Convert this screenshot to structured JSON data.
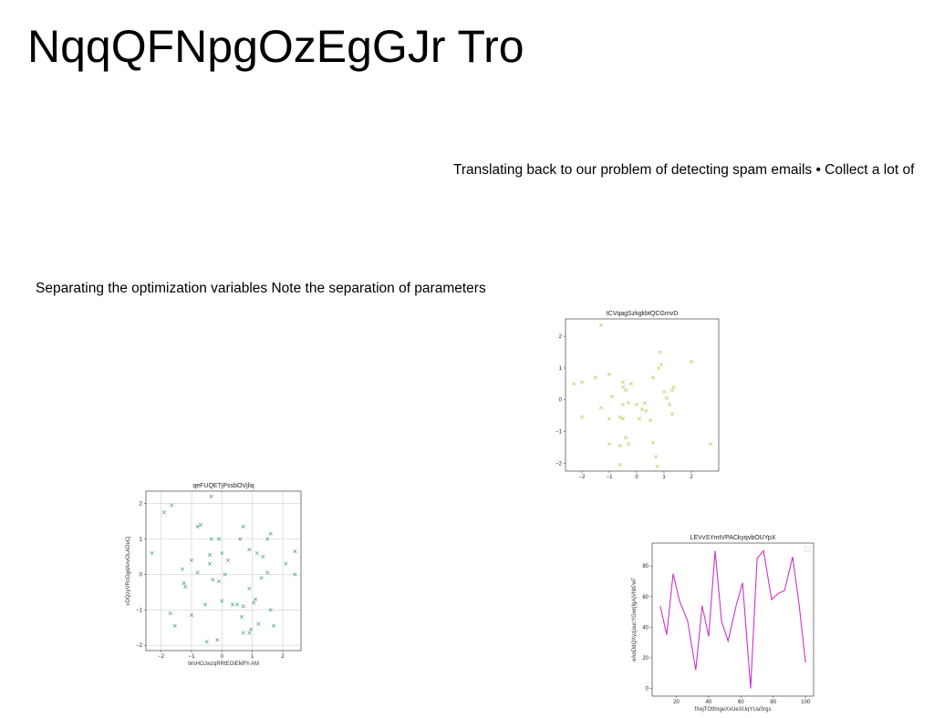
{
  "slide": {
    "title": "NqqQFNpgOzEgGJr Tro",
    "paragraph_1": "Translating back to our problem of detecting spam emails • Collect a lot of",
    "paragraph_2": "Separating the optimization variables Note the separation of parameters"
  },
  "chart_data": [
    {
      "type": "scatter",
      "title": "tCVqagSzkgkbtQCGmvD",
      "xlabel": "",
      "ylabel": "",
      "xlim": [
        -2.6,
        3.0
      ],
      "ylim": [
        -2.25,
        2.55
      ],
      "xticks": [
        -2,
        -1,
        0,
        1,
        2
      ],
      "yticks": [
        -2,
        -1,
        0,
        1,
        2
      ],
      "grid": false,
      "marker": "x",
      "color": "#c8cc6a",
      "points": [
        [
          -1.3,
          2.35
        ],
        [
          -2.3,
          0.5
        ],
        [
          -2.0,
          0.55
        ],
        [
          -1.5,
          0.7
        ],
        [
          -1.0,
          0.8
        ],
        [
          -0.9,
          0.1
        ],
        [
          -1.3,
          -0.25
        ],
        [
          -1.0,
          -0.6
        ],
        [
          -0.5,
          0.55
        ],
        [
          -0.5,
          0.4
        ],
        [
          -0.4,
          0.3
        ],
        [
          -0.3,
          -0.1
        ],
        [
          -0.5,
          -0.15
        ],
        [
          -0.2,
          0.5
        ],
        [
          -0.6,
          -0.55
        ],
        [
          -0.5,
          -0.6
        ],
        [
          0.0,
          -0.15
        ],
        [
          0.1,
          -0.6
        ],
        [
          0.2,
          -0.3
        ],
        [
          0.3,
          -0.1
        ],
        [
          0.35,
          -0.35
        ],
        [
          0.5,
          -0.65
        ],
        [
          0.6,
          0.7
        ],
        [
          0.8,
          1.0
        ],
        [
          0.9,
          1.1
        ],
        [
          0.85,
          1.5
        ],
        [
          1.0,
          0.25
        ],
        [
          1.1,
          0.05
        ],
        [
          1.2,
          -0.15
        ],
        [
          1.3,
          0.3
        ],
        [
          1.35,
          0.4
        ],
        [
          1.3,
          -0.45
        ],
        [
          2.0,
          1.2
        ],
        [
          2.7,
          -1.4
        ],
        [
          -2.0,
          -0.55
        ],
        [
          -1.0,
          -1.4
        ],
        [
          -0.6,
          -1.45
        ],
        [
          -0.3,
          -1.4
        ],
        [
          -0.6,
          -2.05
        ],
        [
          0.6,
          -1.35
        ],
        [
          0.7,
          -1.8
        ],
        [
          0.75,
          -2.1
        ],
        [
          -0.4,
          -1.2
        ]
      ]
    },
    {
      "type": "scatter",
      "title": "qeFUQETjPssbOVjliq",
      "xlabel": "WsHOJwzqRRtEOiEMFh AM",
      "ylabel": "vDQzyVRcGgdAxvOLADeCj",
      "xlim": [
        -2.5,
        2.6
      ],
      "ylim": [
        -2.15,
        2.35
      ],
      "xticks": [
        -2,
        -1,
        0,
        1,
        2
      ],
      "yticks": [
        -2,
        -1,
        0,
        1,
        2
      ],
      "grid": true,
      "marker": "x",
      "color": "#5fa892",
      "points": [
        [
          -2.3,
          0.6
        ],
        [
          -1.9,
          1.75
        ],
        [
          -1.65,
          1.95
        ],
        [
          -0.35,
          2.2
        ],
        [
          -0.8,
          1.35
        ],
        [
          -0.7,
          1.4
        ],
        [
          -0.35,
          1.0
        ],
        [
          -0.1,
          1.0
        ],
        [
          0.6,
          1.0
        ],
        [
          0.7,
          1.35
        ],
        [
          1.5,
          1.0
        ],
        [
          1.6,
          1.15
        ],
        [
          2.4,
          0.65
        ],
        [
          2.1,
          0.3
        ],
        [
          2.4,
          0.0
        ],
        [
          -1.3,
          0.15
        ],
        [
          -1.0,
          0.4
        ],
        [
          -0.8,
          0.05
        ],
        [
          -0.4,
          0.55
        ],
        [
          -0.4,
          0.3
        ],
        [
          0.2,
          0.4
        ],
        [
          0.0,
          0.6
        ],
        [
          0.9,
          0.7
        ],
        [
          1.15,
          0.6
        ],
        [
          1.35,
          0.5
        ],
        [
          1.5,
          0.05
        ],
        [
          1.3,
          -0.1
        ],
        [
          -1.25,
          -0.25
        ],
        [
          -1.2,
          -0.35
        ],
        [
          -0.3,
          -0.15
        ],
        [
          -0.1,
          -0.2
        ],
        [
          0.0,
          -0.75
        ],
        [
          0.35,
          -0.85
        ],
        [
          0.5,
          -0.85
        ],
        [
          0.7,
          -0.9
        ],
        [
          0.9,
          -0.4
        ],
        [
          1.05,
          -0.8
        ],
        [
          1.1,
          -0.7
        ],
        [
          -0.55,
          -0.85
        ],
        [
          -1.7,
          -1.1
        ],
        [
          -1.55,
          -1.45
        ],
        [
          -1.0,
          -1.15
        ],
        [
          -0.5,
          -1.9
        ],
        [
          -0.15,
          -1.85
        ],
        [
          0.65,
          -1.2
        ],
        [
          0.7,
          -1.65
        ],
        [
          0.9,
          -1.65
        ],
        [
          0.95,
          -1.55
        ],
        [
          1.2,
          -1.4
        ],
        [
          1.6,
          -1.0
        ],
        [
          1.7,
          -1.45
        ],
        [
          0.1,
          0.0
        ]
      ]
    },
    {
      "type": "line",
      "title": "LEVvSYmtVPACkyqvbOUYpX",
      "xlabel": "fXejTOtfmgeXxUeXUqYUaSrgs",
      "ylabel": "eAnDdQXyzjaucYGwrjfgAjVNtPeF",
      "xlim": [
        5,
        105
      ],
      "ylim": [
        -5,
        95
      ],
      "xticks": [
        20,
        40,
        60,
        80,
        100
      ],
      "yticks": [
        0,
        20,
        40,
        60,
        80
      ],
      "grid": false,
      "color": "#cc33cc",
      "x": [
        10,
        14,
        18,
        22,
        27,
        32,
        36,
        40,
        44,
        48,
        52,
        57,
        61,
        66,
        70,
        74,
        79,
        83,
        87,
        92,
        96,
        100
      ],
      "y": [
        54,
        35,
        75,
        57,
        44,
        12,
        54,
        34,
        90,
        44,
        31,
        54,
        69,
        0,
        85,
        90,
        58,
        62,
        64,
        86,
        55,
        17
      ]
    }
  ]
}
